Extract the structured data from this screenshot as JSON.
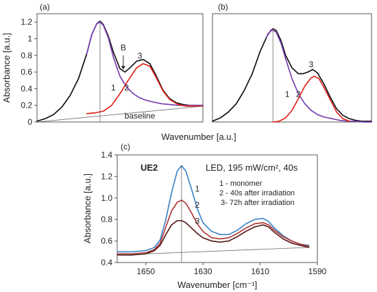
{
  "colors": {
    "black": "#111111",
    "purple": "#7b3fb0",
    "red": "#e2231a",
    "blue": "#3f86c8",
    "dark_red": "#b03a3a",
    "maroon": "#5a1a1a",
    "gray": "#666666"
  },
  "chart_data": [
    {
      "id": "a",
      "type": "line",
      "panel_label": "(a)",
      "ylabel": "Absorbance [a.u.]",
      "xlabel": "Wavenumber [a.u.]",
      "ylim": [
        0,
        1.3
      ],
      "yticks": [
        0,
        0.2,
        0.4,
        0.6,
        0.8,
        1.0,
        1.2
      ],
      "ytick_labels": [
        "0",
        "0.2",
        "0.4",
        "0.6",
        "0.8",
        "1",
        "1.2"
      ],
      "xlim": [
        0,
        100
      ],
      "series": [
        {
          "key": "total",
          "color_key": "black",
          "x": [
            0,
            5,
            10,
            15,
            20,
            25,
            30,
            33,
            36,
            38,
            40,
            43,
            46,
            50,
            53,
            56,
            60,
            64,
            68,
            72,
            76,
            80,
            84,
            88,
            92,
            96,
            100
          ],
          "y": [
            0.01,
            0.04,
            0.09,
            0.18,
            0.32,
            0.52,
            0.82,
            1.05,
            1.18,
            1.21,
            1.17,
            1.03,
            0.84,
            0.64,
            0.6,
            0.65,
            0.73,
            0.75,
            0.7,
            0.55,
            0.38,
            0.28,
            0.23,
            0.21,
            0.2,
            0.2,
            0.2
          ]
        },
        {
          "key": "band1",
          "color_key": "purple",
          "x": [
            30,
            33,
            36,
            38,
            40,
            43,
            46,
            50,
            54,
            58,
            62,
            66,
            70,
            75,
            80,
            85,
            90,
            95,
            100
          ],
          "y": [
            0.82,
            1.05,
            1.18,
            1.2,
            1.16,
            1.01,
            0.78,
            0.55,
            0.42,
            0.34,
            0.29,
            0.26,
            0.24,
            0.22,
            0.21,
            0.2,
            0.2,
            0.2,
            0.2
          ]
        },
        {
          "key": "band2",
          "color_key": "red",
          "x": [
            30,
            35,
            40,
            45,
            50,
            55,
            60,
            64,
            68,
            72,
            76,
            80,
            85,
            90,
            95,
            100
          ],
          "y": [
            0.1,
            0.11,
            0.13,
            0.2,
            0.34,
            0.5,
            0.65,
            0.7,
            0.67,
            0.53,
            0.37,
            0.27,
            0.21,
            0.19,
            0.19,
            0.19
          ]
        },
        {
          "key": "baseline",
          "color_key": "gray",
          "x": [
            0,
            100
          ],
          "y": [
            0,
            0.19
          ]
        }
      ],
      "vline": {
        "x": 38,
        "y": 1.2
      },
      "annotations": [
        {
          "text": "B",
          "x": 52,
          "y": 0.86
        },
        {
          "text": "1",
          "x": 46,
          "y": 0.38
        },
        {
          "text": "2",
          "x": 54,
          "y": 0.38
        },
        {
          "text": "3",
          "x": 62,
          "y": 0.76
        },
        {
          "text": "baseline",
          "x": 62,
          "y": 0.04
        }
      ],
      "arrow": {
        "x": 52,
        "y_from": 0.8,
        "y_to": 0.63
      }
    },
    {
      "id": "b",
      "type": "line",
      "panel_label": "(b)",
      "xlim": [
        0,
        100
      ],
      "ylim": [
        0,
        1.3
      ],
      "series": [
        {
          "key": "total",
          "color_key": "black",
          "x": [
            0,
            5,
            10,
            15,
            20,
            25,
            30,
            35,
            38,
            40,
            43,
            46,
            50,
            54,
            57,
            60,
            63,
            66,
            70,
            74,
            78,
            82,
            86,
            90,
            94,
            100
          ],
          "y": [
            0.01,
            0.05,
            0.12,
            0.22,
            0.38,
            0.58,
            0.85,
            1.06,
            1.12,
            1.1,
            0.98,
            0.8,
            0.65,
            0.58,
            0.58,
            0.6,
            0.63,
            0.59,
            0.46,
            0.3,
            0.16,
            0.08,
            0.04,
            0.02,
            0.01,
            0.01
          ]
        },
        {
          "key": "band1",
          "color_key": "purple",
          "x": [
            34,
            37,
            40,
            43,
            46,
            50,
            54,
            58,
            62,
            66,
            70,
            75,
            80,
            85,
            90,
            95,
            100
          ],
          "y": [
            1.02,
            1.11,
            1.08,
            0.95,
            0.76,
            0.52,
            0.34,
            0.22,
            0.14,
            0.09,
            0.06,
            0.04,
            0.02,
            0.01,
            0.01,
            0.0,
            0.0
          ]
        },
        {
          "key": "band2",
          "color_key": "red",
          "x": [
            38,
            42,
            46,
            50,
            54,
            58,
            62,
            64,
            67,
            70,
            74,
            78,
            82,
            86
          ],
          "y": [
            0.0,
            0.01,
            0.05,
            0.14,
            0.28,
            0.43,
            0.53,
            0.55,
            0.52,
            0.42,
            0.27,
            0.12,
            0.04,
            0.01
          ]
        }
      ],
      "vline": {
        "x": 38,
        "y": 1.12
      },
      "annotations": [
        {
          "text": "1",
          "x": 47,
          "y": 0.3
        },
        {
          "text": "2",
          "x": 54,
          "y": 0.3
        },
        {
          "text": "3",
          "x": 62,
          "y": 0.66
        }
      ]
    },
    {
      "id": "c",
      "type": "line",
      "panel_label": "(c)",
      "ylabel": "Absorbance [a.u.]",
      "xlabel": "Wavenumber [cm⁻¹]",
      "xlim": [
        1660,
        1590
      ],
      "xticks": [
        1650,
        1630,
        1610,
        1590
      ],
      "ylim": [
        0.4,
        1.4
      ],
      "yticks": [
        0.4,
        0.6,
        0.8,
        1.0,
        1.2,
        1.4
      ],
      "ytick_labels": [
        "0.4",
        "0.6",
        "0.8",
        "1.0",
        "1.2",
        "1.4"
      ],
      "series": [
        {
          "name": "1 - monomer",
          "color_key": "blue",
          "x": [
            1660,
            1655,
            1650,
            1647,
            1645,
            1643,
            1641,
            1639,
            1637.5,
            1636,
            1634,
            1632,
            1630,
            1627,
            1624,
            1621,
            1618,
            1615,
            1612,
            1609,
            1607,
            1605,
            1602,
            1599,
            1596,
            1593
          ],
          "y": [
            0.5,
            0.5,
            0.51,
            0.54,
            0.61,
            0.8,
            1.05,
            1.25,
            1.3,
            1.25,
            1.08,
            0.9,
            0.77,
            0.69,
            0.66,
            0.66,
            0.7,
            0.76,
            0.8,
            0.81,
            0.78,
            0.72,
            0.65,
            0.6,
            0.57,
            0.56
          ]
        },
        {
          "name": "2 - 40s after irradiation",
          "color_key": "dark_red",
          "x": [
            1660,
            1655,
            1650,
            1647,
            1645,
            1643,
            1641,
            1639,
            1637.5,
            1636,
            1634,
            1632,
            1630,
            1627,
            1624,
            1621,
            1618,
            1615,
            1612,
            1609,
            1607,
            1605,
            1602,
            1599,
            1596,
            1593
          ],
          "y": [
            0.48,
            0.48,
            0.49,
            0.52,
            0.58,
            0.73,
            0.88,
            0.96,
            0.98,
            0.95,
            0.86,
            0.76,
            0.69,
            0.63,
            0.62,
            0.63,
            0.67,
            0.72,
            0.76,
            0.77,
            0.75,
            0.7,
            0.64,
            0.6,
            0.57,
            0.55
          ]
        },
        {
          "name": "3- 72h after irradiation",
          "color_key": "maroon",
          "x": [
            1660,
            1655,
            1650,
            1647,
            1645,
            1643,
            1641,
            1639,
            1637.5,
            1636,
            1634,
            1632,
            1630,
            1627,
            1624,
            1621,
            1618,
            1615,
            1612,
            1609,
            1607,
            1605,
            1602,
            1599,
            1596,
            1593
          ],
          "y": [
            0.47,
            0.47,
            0.48,
            0.51,
            0.56,
            0.66,
            0.75,
            0.79,
            0.79,
            0.77,
            0.72,
            0.67,
            0.63,
            0.6,
            0.59,
            0.6,
            0.64,
            0.69,
            0.73,
            0.75,
            0.73,
            0.68,
            0.62,
            0.58,
            0.56,
            0.54
          ]
        },
        {
          "key": "baseline",
          "color_key": "gray",
          "x": [
            1660,
            1593
          ],
          "y": [
            0.47,
            0.54
          ]
        }
      ],
      "vline": {
        "x": 1637.5,
        "y": 1.3
      },
      "annotations": [
        {
          "text": "1",
          "x": 1632,
          "y": 1.06
        },
        {
          "text": "2",
          "x": 1632,
          "y": 0.91
        },
        {
          "text": "3",
          "x": 1632,
          "y": 0.76
        }
      ],
      "sample_label": "UE2",
      "condition_label": "LED, 195 mW/cm², 40s",
      "legend_lines": [
        "1 - monomer",
        "2 - 40s after irradiation",
        "3- 72h after irradiation"
      ]
    }
  ]
}
